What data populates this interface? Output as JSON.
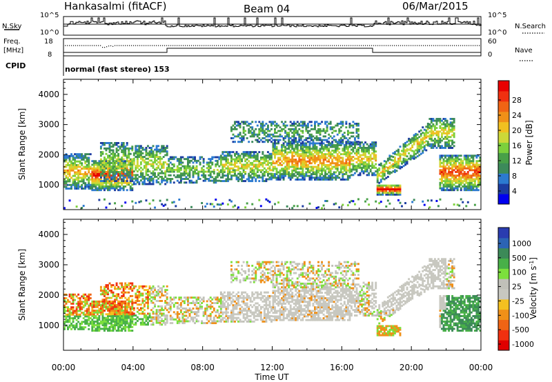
{
  "header": {
    "station": "Hankasalmi (fitACF)",
    "beam": "Beam 04",
    "date": "06/Mar/2015"
  },
  "noise_panel": {
    "left_label": "N.Sky",
    "right_label": "N.Search",
    "left_ticks": [
      "10^5",
      "10^0"
    ],
    "right_ticks": [
      "10^5",
      "10^0"
    ]
  },
  "freq_panel": {
    "left_label_1": "Freq.",
    "left_label_2": "[MHz]",
    "left_ticks": [
      "18",
      "8"
    ],
    "right_label": "Nave",
    "right_ticks": [
      "60",
      "0"
    ]
  },
  "cpid": {
    "label": "CPID",
    "text": "normal (fast stereo) 153"
  },
  "chart_data": [
    {
      "type": "heatmap",
      "name": "power",
      "xlabel": "Time UT",
      "ylabel": "Slant Range [km]",
      "xlim_hours": [
        0,
        24
      ],
      "x_tick_labels": [
        "00:00",
        "04:00",
        "08:00",
        "12:00",
        "16:00",
        "20:00",
        "00:00"
      ],
      "ylim": [
        180,
        4500
      ],
      "y_ticks": [
        1000,
        2000,
        3000,
        4000
      ],
      "colorbar": {
        "label": "Power [dB]",
        "ticks": [
          "4",
          "8",
          "12",
          "16",
          "20",
          "24",
          "28"
        ],
        "colors": [
          "#0000f0",
          "#1c3ca0",
          "#2c7ad0",
          "#3c8a5a",
          "#48a048",
          "#7cd03c",
          "#ccd838",
          "#f0c020",
          "#f09018",
          "#f06414",
          "#f03010",
          "#e80000"
        ]
      }
    },
    {
      "type": "heatmap",
      "name": "velocity",
      "xlabel": "Time UT",
      "ylabel": "Slant Range [km]",
      "xlim_hours": [
        0,
        24
      ],
      "x_tick_labels": [
        "00:00",
        "04:00",
        "08:00",
        "12:00",
        "16:00",
        "20:00",
        "00:00"
      ],
      "ylim": [
        180,
        4500
      ],
      "y_ticks": [
        1000,
        2000,
        3000,
        4000
      ],
      "colorbar": {
        "label": "Velocity [m s^-1]",
        "ticks": [
          "1000",
          "500",
          "100",
          "25",
          "-25",
          "-100",
          "-500",
          "-1000"
        ],
        "colors": [
          "#2a3cb0",
          "#2c64b4",
          "#3c8a58",
          "#48b048",
          "#7ce03c",
          "#c0c0b8",
          "#c8c8c0",
          "#f4c020",
          "#f09018",
          "#f06414",
          "#f03010",
          "#e00000"
        ]
      }
    }
  ]
}
